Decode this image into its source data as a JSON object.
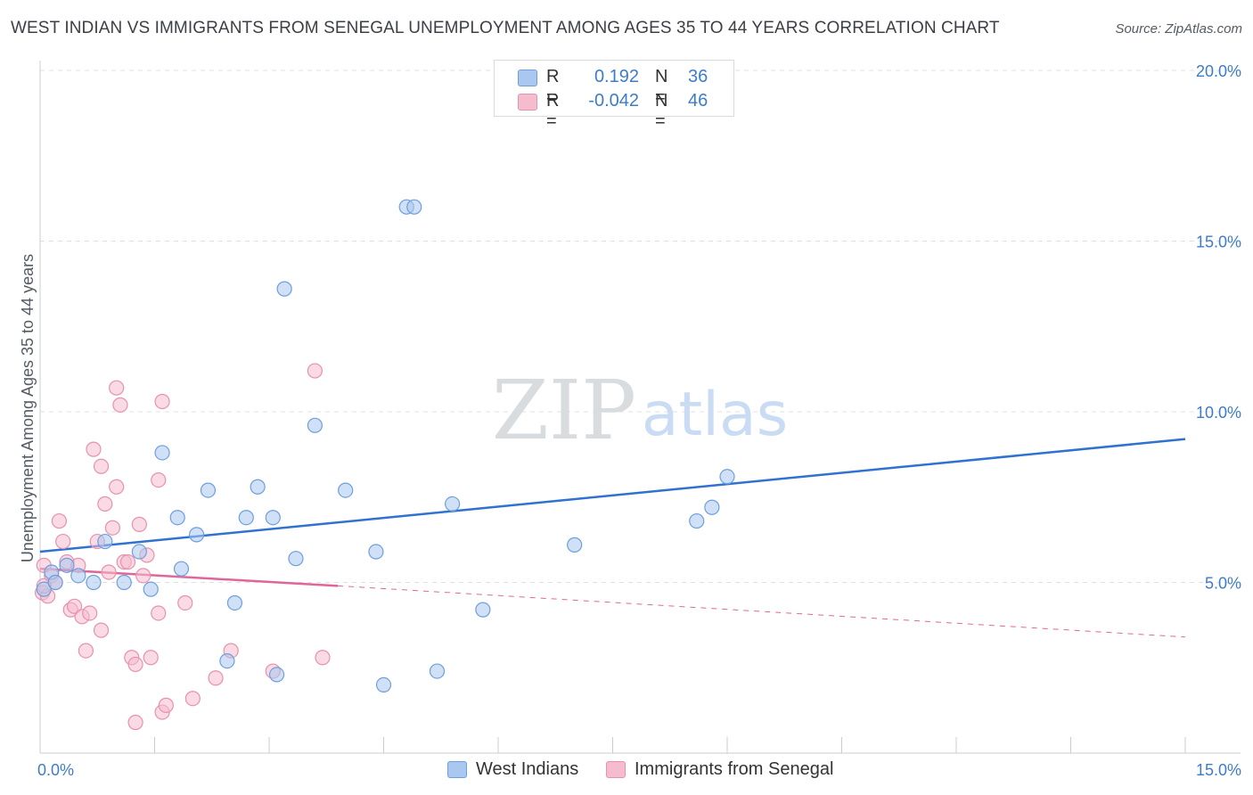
{
  "title": "WEST INDIAN VS IMMIGRANTS FROM SENEGAL UNEMPLOYMENT AMONG AGES 35 TO 44 YEARS CORRELATION CHART",
  "source": "Source: ZipAtlas.com",
  "watermark": {
    "zip": "ZIP",
    "atlas": "atlas"
  },
  "legend": {
    "rows": [
      {
        "r_label": "R =",
        "r_value": "0.192",
        "n_label": "N =",
        "n_value": "36"
      },
      {
        "r_label": "R =",
        "r_value": "-0.042",
        "n_label": "N =",
        "n_value": "46"
      }
    ]
  },
  "colors": {
    "blue_fill": "#aac7ef",
    "blue_stroke": "#6d9fdc",
    "blue_line": "#2f72d0",
    "pink_fill": "#f5bccd",
    "pink_stroke": "#e891ac",
    "pink_line": "#e0669a",
    "grid": "#dde1e6",
    "axis_text": "#3d7cc9"
  },
  "chart_data": {
    "type": "scatter",
    "title": "WEST INDIAN VS IMMIGRANTS FROM SENEGAL UNEMPLOYMENT AMONG AGES 35 TO 44 YEARS CORRELATION CHART",
    "xlabel": "",
    "ylabel": "Unemployment Among Ages 35 to 44 years",
    "xlim": [
      0,
      15
    ],
    "ylim": [
      0,
      20
    ],
    "x_tick_labels": [
      "0.0%",
      "15.0%"
    ],
    "y_ticks": [
      5,
      10,
      15,
      20
    ],
    "y_tick_labels": [
      "5.0%",
      "10.0%",
      "15.0%",
      "20.0%"
    ],
    "grid": true,
    "series": [
      {
        "name": "West Indians",
        "r": 0.192,
        "n": 36,
        "points": [
          [
            0.05,
            4.8
          ],
          [
            0.15,
            5.3
          ],
          [
            0.2,
            5.0
          ],
          [
            0.35,
            5.5
          ],
          [
            0.5,
            5.2
          ],
          [
            0.7,
            5.0
          ],
          [
            0.85,
            6.2
          ],
          [
            1.1,
            5.0
          ],
          [
            1.3,
            5.9
          ],
          [
            1.45,
            4.8
          ],
          [
            1.6,
            8.8
          ],
          [
            1.8,
            6.9
          ],
          [
            1.85,
            5.4
          ],
          [
            2.05,
            6.4
          ],
          [
            2.2,
            7.7
          ],
          [
            2.45,
            2.7
          ],
          [
            2.55,
            4.4
          ],
          [
            2.7,
            6.9
          ],
          [
            2.85,
            7.8
          ],
          [
            3.05,
            6.9
          ],
          [
            3.1,
            2.3
          ],
          [
            3.2,
            13.6
          ],
          [
            3.35,
            5.7
          ],
          [
            3.6,
            9.6
          ],
          [
            4.0,
            7.7
          ],
          [
            4.4,
            5.9
          ],
          [
            4.5,
            2.0
          ],
          [
            4.8,
            16.0
          ],
          [
            4.9,
            16.0
          ],
          [
            5.2,
            2.4
          ],
          [
            5.4,
            7.3
          ],
          [
            5.8,
            4.2
          ],
          [
            7.0,
            6.1
          ],
          [
            8.6,
            6.8
          ],
          [
            8.8,
            7.2
          ],
          [
            9.0,
            8.1
          ]
        ]
      },
      {
        "name": "Immigrants from Senegal",
        "r": -0.042,
        "n": 46,
        "points": [
          [
            0.03,
            4.7
          ],
          [
            0.05,
            5.5
          ],
          [
            0.1,
            4.6
          ],
          [
            0.15,
            5.2
          ],
          [
            0.2,
            5.0
          ],
          [
            0.25,
            6.8
          ],
          [
            0.3,
            6.2
          ],
          [
            0.35,
            5.6
          ],
          [
            0.4,
            4.2
          ],
          [
            0.45,
            4.3
          ],
          [
            0.5,
            5.5
          ],
          [
            0.55,
            4.0
          ],
          [
            0.6,
            3.0
          ],
          [
            0.65,
            4.1
          ],
          [
            0.7,
            8.9
          ],
          [
            0.75,
            6.2
          ],
          [
            0.8,
            3.6
          ],
          [
            0.8,
            8.4
          ],
          [
            0.85,
            7.3
          ],
          [
            0.9,
            5.3
          ],
          [
            0.95,
            6.6
          ],
          [
            1.0,
            7.8
          ],
          [
            1.0,
            10.7
          ],
          [
            1.05,
            10.2
          ],
          [
            1.1,
            5.6
          ],
          [
            1.15,
            5.6
          ],
          [
            1.2,
            2.8
          ],
          [
            1.25,
            2.6
          ],
          [
            1.25,
            0.9
          ],
          [
            1.3,
            6.7
          ],
          [
            1.35,
            5.2
          ],
          [
            1.4,
            5.8
          ],
          [
            1.45,
            2.8
          ],
          [
            1.55,
            8.0
          ],
          [
            1.55,
            4.1
          ],
          [
            1.6,
            1.2
          ],
          [
            1.6,
            10.3
          ],
          [
            1.65,
            1.4
          ],
          [
            1.9,
            4.4
          ],
          [
            2.0,
            1.6
          ],
          [
            2.3,
            2.2
          ],
          [
            2.5,
            3.0
          ],
          [
            3.05,
            2.4
          ],
          [
            3.7,
            2.8
          ],
          [
            3.6,
            11.2
          ],
          [
            0.05,
            4.9
          ]
        ]
      }
    ],
    "trend_lines": [
      {
        "series": "West Indians",
        "x": [
          0,
          15
        ],
        "y": [
          5.9,
          9.2
        ],
        "style": "solid"
      },
      {
        "series": "Immigrants from Senegal",
        "x": [
          0,
          3.9
        ],
        "y": [
          5.4,
          4.9
        ],
        "style": "solid"
      },
      {
        "series": "Immigrants from Senegal",
        "x": [
          3.9,
          15
        ],
        "y": [
          4.9,
          3.4
        ],
        "style": "dashed"
      }
    ]
  }
}
